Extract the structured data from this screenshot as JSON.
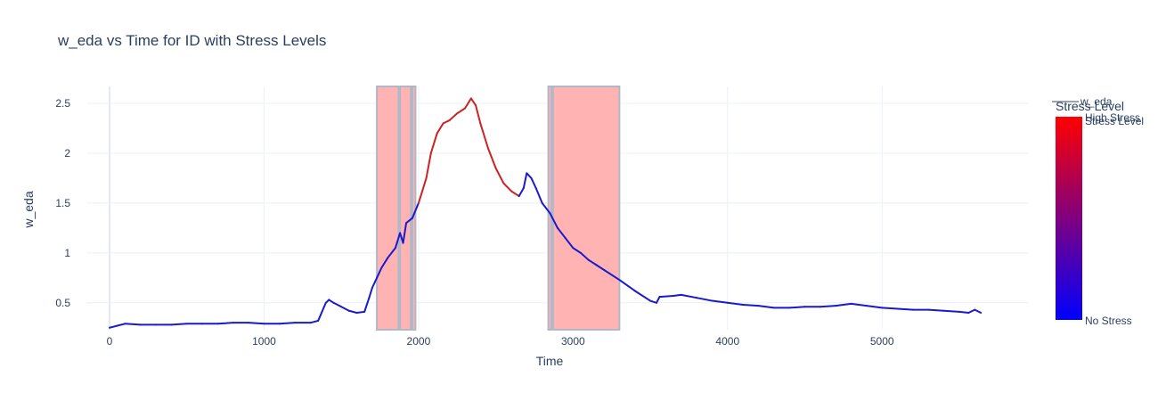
{
  "chart_data": {
    "type": "line",
    "title": "w_eda vs Time for ID  with Stress Levels",
    "xlabel": "Time",
    "ylabel": "w_eda",
    "xlim": [
      -150,
      5950
    ],
    "ylim": [
      0.23,
      2.67
    ],
    "x_ticks": [
      0,
      1000,
      2000,
      3000,
      4000,
      5000
    ],
    "y_ticks": [
      0.5,
      1,
      1.5,
      2,
      2.5
    ],
    "x_tick_labels": [
      "0",
      "1000",
      "2000",
      "3000",
      "4000",
      "5000"
    ],
    "y_tick_labels": [
      "0.5",
      "1",
      "1.5",
      "2",
      "2.5"
    ],
    "grid": true,
    "legend_position": "top-right",
    "stress_regions": [
      {
        "x0": 1730,
        "x1": 1870
      },
      {
        "x0": 1880,
        "x1": 1950
      },
      {
        "x0": 1960,
        "x1": 1980
      },
      {
        "x0": 2840,
        "x1": 2860
      },
      {
        "x0": 2870,
        "x1": 3300
      }
    ],
    "series": [
      {
        "name": "w_eda",
        "color_low": "#0000ff",
        "color_high": "#ff0000",
        "points": [
          [
            0,
            0.25
          ],
          [
            50,
            0.27
          ],
          [
            100,
            0.29
          ],
          [
            200,
            0.28
          ],
          [
            300,
            0.28
          ],
          [
            400,
            0.28
          ],
          [
            500,
            0.29
          ],
          [
            600,
            0.29
          ],
          [
            700,
            0.29
          ],
          [
            800,
            0.3
          ],
          [
            900,
            0.3
          ],
          [
            1000,
            0.29
          ],
          [
            1100,
            0.29
          ],
          [
            1200,
            0.3
          ],
          [
            1300,
            0.3
          ],
          [
            1350,
            0.32
          ],
          [
            1400,
            0.5
          ],
          [
            1420,
            0.53
          ],
          [
            1450,
            0.5
          ],
          [
            1500,
            0.46
          ],
          [
            1550,
            0.42
          ],
          [
            1600,
            0.4
          ],
          [
            1650,
            0.41
          ],
          [
            1680,
            0.55
          ],
          [
            1700,
            0.65
          ],
          [
            1730,
            0.75
          ],
          [
            1760,
            0.85
          ],
          [
            1800,
            0.95
          ],
          [
            1850,
            1.05
          ],
          [
            1880,
            1.2
          ],
          [
            1900,
            1.1
          ],
          [
            1920,
            1.3
          ],
          [
            1960,
            1.35
          ],
          [
            2000,
            1.5
          ],
          [
            2050,
            1.75
          ],
          [
            2080,
            2.0
          ],
          [
            2120,
            2.2
          ],
          [
            2160,
            2.3
          ],
          [
            2200,
            2.33
          ],
          [
            2250,
            2.4
          ],
          [
            2300,
            2.45
          ],
          [
            2340,
            2.55
          ],
          [
            2370,
            2.48
          ],
          [
            2400,
            2.3
          ],
          [
            2450,
            2.05
          ],
          [
            2500,
            1.85
          ],
          [
            2550,
            1.7
          ],
          [
            2600,
            1.62
          ],
          [
            2650,
            1.57
          ],
          [
            2680,
            1.65
          ],
          [
            2700,
            1.8
          ],
          [
            2730,
            1.75
          ],
          [
            2760,
            1.65
          ],
          [
            2800,
            1.5
          ],
          [
            2850,
            1.4
          ],
          [
            2900,
            1.25
          ],
          [
            2950,
            1.15
          ],
          [
            3000,
            1.05
          ],
          [
            3050,
            1.0
          ],
          [
            3100,
            0.93
          ],
          [
            3150,
            0.88
          ],
          [
            3200,
            0.83
          ],
          [
            3300,
            0.73
          ],
          [
            3400,
            0.62
          ],
          [
            3500,
            0.52
          ],
          [
            3540,
            0.5
          ],
          [
            3560,
            0.56
          ],
          [
            3650,
            0.57
          ],
          [
            3700,
            0.58
          ],
          [
            3800,
            0.55
          ],
          [
            3900,
            0.52
          ],
          [
            4000,
            0.5
          ],
          [
            4100,
            0.48
          ],
          [
            4200,
            0.47
          ],
          [
            4300,
            0.45
          ],
          [
            4400,
            0.45
          ],
          [
            4500,
            0.46
          ],
          [
            4600,
            0.46
          ],
          [
            4700,
            0.47
          ],
          [
            4800,
            0.49
          ],
          [
            4900,
            0.47
          ],
          [
            5000,
            0.45
          ],
          [
            5100,
            0.44
          ],
          [
            5200,
            0.43
          ],
          [
            5300,
            0.43
          ],
          [
            5400,
            0.42
          ],
          [
            5500,
            0.41
          ],
          [
            5560,
            0.4
          ],
          [
            5600,
            0.43
          ],
          [
            5640,
            0.4
          ]
        ]
      }
    ],
    "high_stress_ranges": [
      [
        2000,
        2660
      ]
    ],
    "colorbar": {
      "title": "Stress Level",
      "low_label": "No Stress",
      "high_label": "High Stress",
      "extra_label": "Stress Level"
    },
    "legend": [
      {
        "name": "w_eda"
      }
    ]
  }
}
